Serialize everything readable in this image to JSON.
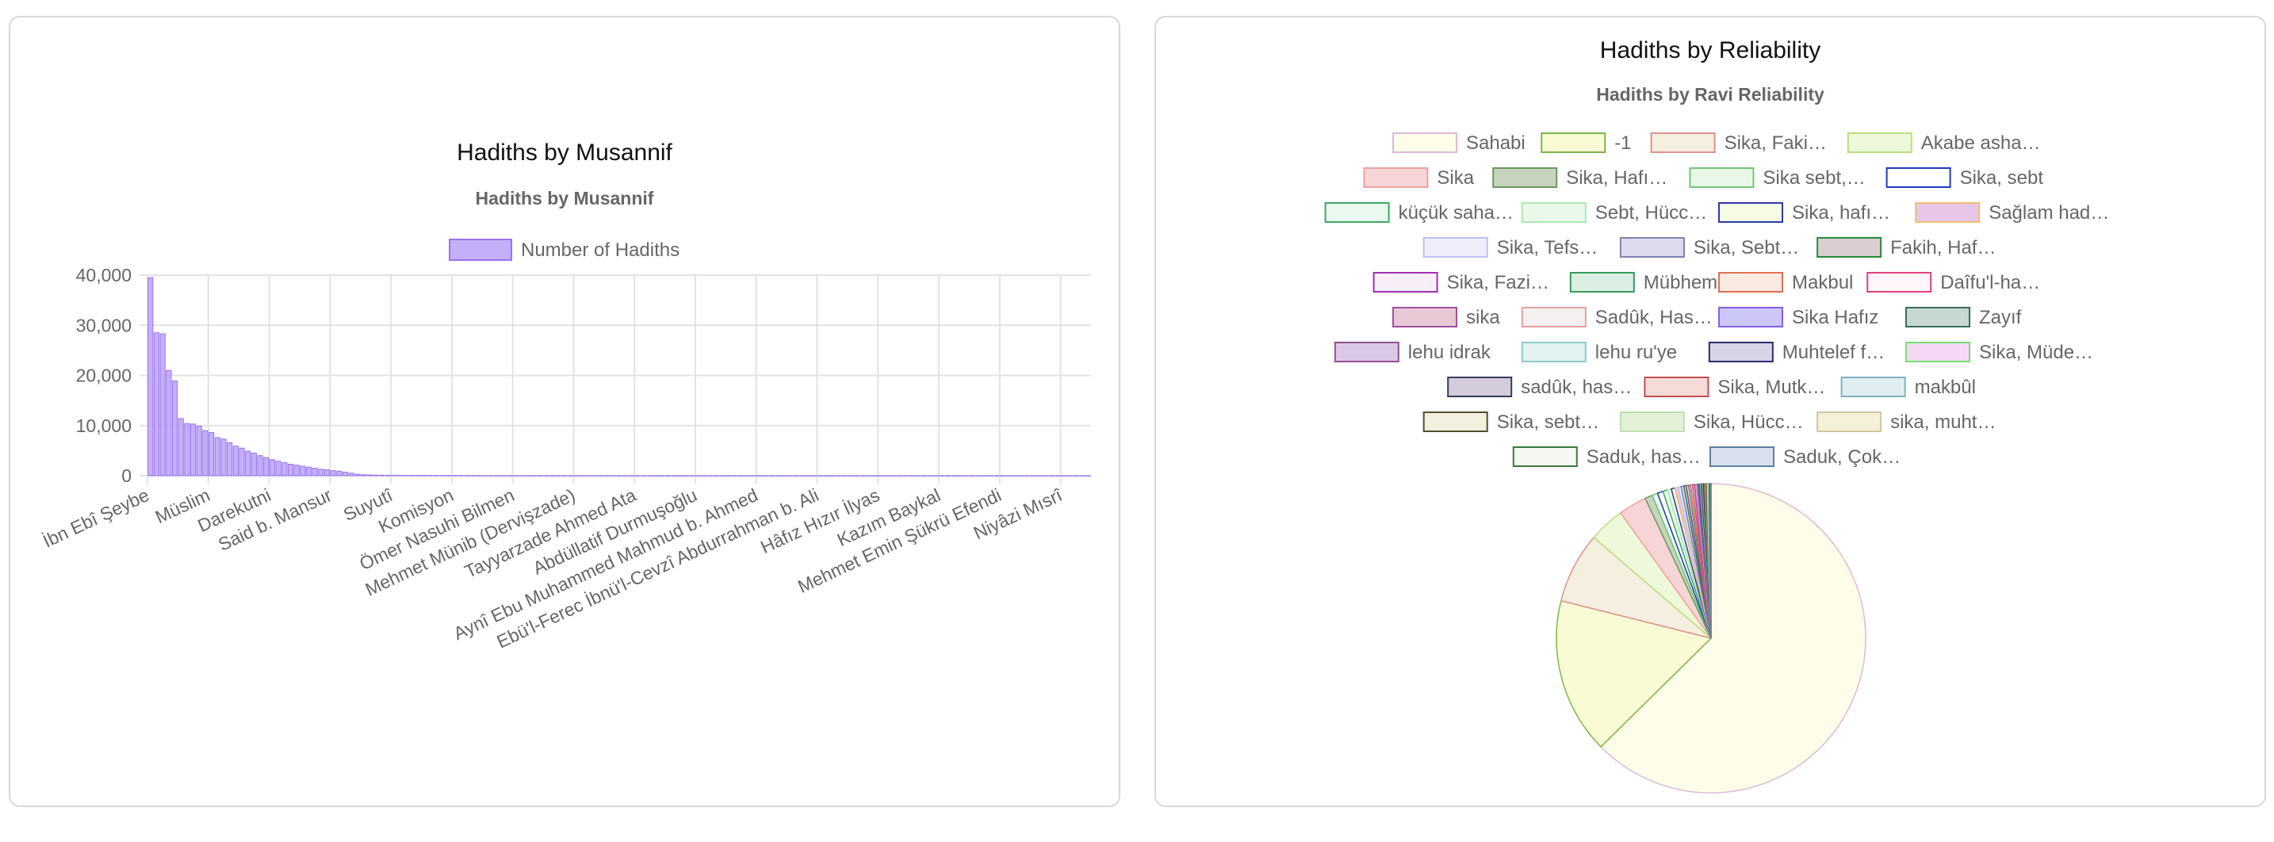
{
  "chart_data": [
    {
      "type": "bar",
      "title": "Hadiths by Musannif",
      "subtitle": "Hadiths by Musannif",
      "legend": "Number of Hadiths",
      "legend_position": "top",
      "grid": true,
      "ylim": [
        0,
        40000
      ],
      "yticks": [
        "0",
        "10,000",
        "20,000",
        "30,000",
        "40,000"
      ],
      "xtick_labels": [
        "İbn Ebî Şeybe",
        "Müslim",
        "Darekutni",
        "Said b. Mansur",
        "Suyutî",
        "Komisyon",
        "Ömer Nasuhi Bilmen",
        "Mehmet Münib (Dervişzade)",
        "Tayyarzade Ahmed Ata",
        "Abdüllatif Durmuşoğlu",
        "Aynî Ebu Muhammed Mahmud b. Ahmed",
        "Ebü'l-Ferec İbnü'l-Cevzî Abdurrahman b. Ali",
        "Hâfız Hızır İlyas",
        "Kazım Baykal",
        "Mehmet Emin Şükrü Efendi",
        "Niyâzi Mısrî"
      ],
      "series": [
        {
          "name": "Number of Hadiths",
          "values": [
            39500,
            28500,
            28300,
            21000,
            18900,
            11400,
            10400,
            10300,
            9900,
            9000,
            8600,
            7600,
            7300,
            6600,
            5900,
            5500,
            4900,
            4500,
            4000,
            3600,
            3200,
            2900,
            2600,
            2300,
            2100,
            1900,
            1700,
            1500,
            1300,
            1200,
            1000,
            900,
            700,
            500,
            300,
            200,
            150,
            120,
            100,
            90,
            80,
            70,
            60,
            60,
            50,
            50,
            45,
            40,
            40,
            35,
            35,
            30,
            30,
            28,
            26,
            25,
            24,
            22,
            21,
            20,
            19,
            18,
            17,
            16,
            15,
            15,
            14,
            13,
            12,
            12,
            11,
            11,
            10,
            10,
            9,
            9,
            8,
            8,
            8,
            7,
            7,
            7,
            6,
            6,
            6,
            6,
            5,
            5,
            5,
            5,
            5,
            4,
            4,
            4,
            4,
            4,
            4,
            3,
            3,
            3,
            3,
            3,
            3,
            3,
            3,
            2,
            2,
            2,
            2,
            2,
            2,
            2,
            2,
            2,
            2,
            2,
            2,
            2,
            1,
            1,
            1,
            1,
            1,
            1,
            1,
            1,
            1,
            1,
            1,
            1,
            1,
            1,
            1,
            1,
            1,
            1,
            1,
            1,
            1,
            1,
            1,
            1,
            1,
            1,
            1,
            1,
            1,
            1,
            1,
            1,
            1,
            1,
            1,
            1,
            1
          ]
        }
      ],
      "colors": {
        "fill": "#c4b0f8",
        "stroke": "#9a72f0"
      }
    },
    {
      "type": "pie",
      "title": "Hadiths by Reliability",
      "subtitle": "Hadiths by Ravi Reliability",
      "legend_position": "top",
      "labels": [
        "Sahabi",
        "-1",
        "Sika, Faki…",
        "Akabe asha…",
        "Sika",
        "Sika, Hafı…",
        "Sika sebt,…",
        "Sika, sebt",
        "küçük saha…",
        "Sebt, Hücc…",
        "Sika, hafı…",
        "Sağlam had…",
        "Sika, Tefs…",
        "Sika, Sebt…",
        "Fakih, Haf…",
        "Sika, Fazi…",
        "Mübhem",
        "Makbul",
        "Daîfu'l-ha…",
        "sika",
        "Sadûk, Has…",
        "Sika Hafız",
        "Zayıf",
        "lehu idrak",
        "lehu ru'ye",
        "Muhtelef f…",
        "Sika, Müde…",
        "sadûk, has…",
        "Sika, Mutk…",
        "makbûl",
        "Sika, sebt…",
        "Sika, Hücc…",
        "sika, muht…",
        "Saduk, has…",
        "Saduk, Çok…"
      ],
      "values": [
        63.5,
        16.5,
        7.5,
        3.8,
        3.0,
        0.8,
        0.6,
        0.6,
        0.5,
        0.4,
        0.4,
        0.35,
        0.3,
        0.3,
        0.25,
        0.25,
        0.2,
        0.2,
        0.2,
        0.15,
        0.15,
        0.15,
        0.1,
        0.1,
        0.1,
        0.1,
        0.1,
        0.1,
        0.1,
        0.1,
        0.1,
        0.1,
        0.1,
        0.1,
        0.1
      ],
      "fill_colors": [
        "#fdfde9",
        "#f9fbd4",
        "#f4efdf",
        "#eef8db",
        "#f6d5d6",
        "#c8d3c0",
        "#e9f7e9",
        "#ffffff",
        "#e9f9ef",
        "#eaf8ea",
        "#f6fbe5",
        "#e7c6e8",
        "#eeeefa",
        "#dcdcee",
        "#dccdd0",
        "#f7eef7",
        "#dcefe3",
        "#fbe9e3",
        "#fff6fa",
        "#e8c8d5",
        "#f5f0f0",
        "#cdc6f8",
        "#c7d8d3",
        "#dcc8e8",
        "#e3f2f2",
        "#d8d4e6",
        "#f7d7f6",
        "#d3ccdb",
        "#f6dcd8",
        "#e0eef1",
        "#f3f0e0",
        "#e3f0d8",
        "#f5f0d8",
        "#f5f7f2",
        "#d8e0ee"
      ],
      "border_colors": [
        "#e0b8d8",
        "#7ab84a",
        "#e09090",
        "#b8e07a",
        "#f0a0a0",
        "#6a9a5a",
        "#70c870",
        "#2038c0",
        "#40a860",
        "#b0e8b0",
        "#2a3aa8",
        "#f0c070",
        "#c0c0f0",
        "#8080b0",
        "#2a8a3a",
        "#a030b0",
        "#3a9a5a",
        "#e07050",
        "#e04080",
        "#a050a0",
        "#e0a0a0",
        "#8060e0",
        "#3a6a5a",
        "#905090",
        "#90c8c8",
        "#2a2a6a",
        "#70e070",
        "#3a3a5a",
        "#c05050",
        "#80b0c0",
        "#505030",
        "#c0e0b0",
        "#d0c8a0",
        "#3a7a3a",
        "#5a80a0"
      ]
    }
  ]
}
